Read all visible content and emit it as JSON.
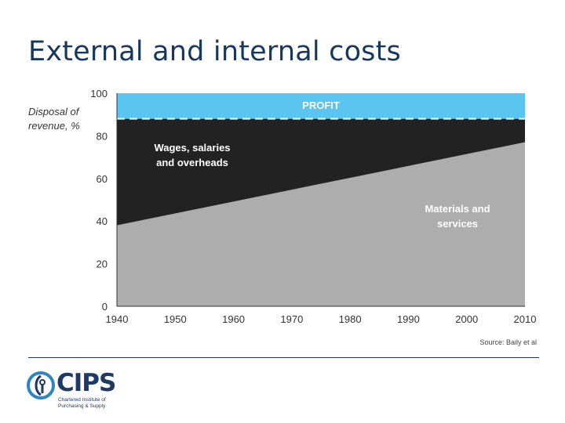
{
  "slide": {
    "title": "External and internal costs"
  },
  "chart_data": {
    "type": "area",
    "stacked": true,
    "x": [
      1940,
      2010
    ],
    "xticks": [
      1940,
      1950,
      1960,
      1970,
      1980,
      1990,
      2000,
      2010
    ],
    "yticks": [
      0,
      20,
      40,
      60,
      80,
      100
    ],
    "xlim": [
      1940,
      2010
    ],
    "ylim": [
      0,
      100
    ],
    "ylabel_line1": "Disposal of",
    "ylabel_line2": "revenue, %",
    "grid": false,
    "series": [
      {
        "name": "Materials and services",
        "label_line1": "Materials and",
        "label_line2": "services",
        "values": [
          38,
          77
        ],
        "color": "#adadad"
      },
      {
        "name": "Wages, salaries and overheads",
        "label_line1": "Wages, salaries",
        "label_line2": "and overheads",
        "values": [
          50,
          11
        ],
        "color": "#222222"
      },
      {
        "name": "PROFIT",
        "label_line1": "PROFIT",
        "label_line2": "",
        "values": [
          12,
          12
        ],
        "color": "#5bc5f2"
      }
    ],
    "source": "Source: Baily et al"
  },
  "logo": {
    "word": "CIPS",
    "sub_line1": "Chartered Institute of",
    "sub_line2": "Purchasing & Supply",
    "color": "#1f3864",
    "accent": "#2e86c1"
  }
}
